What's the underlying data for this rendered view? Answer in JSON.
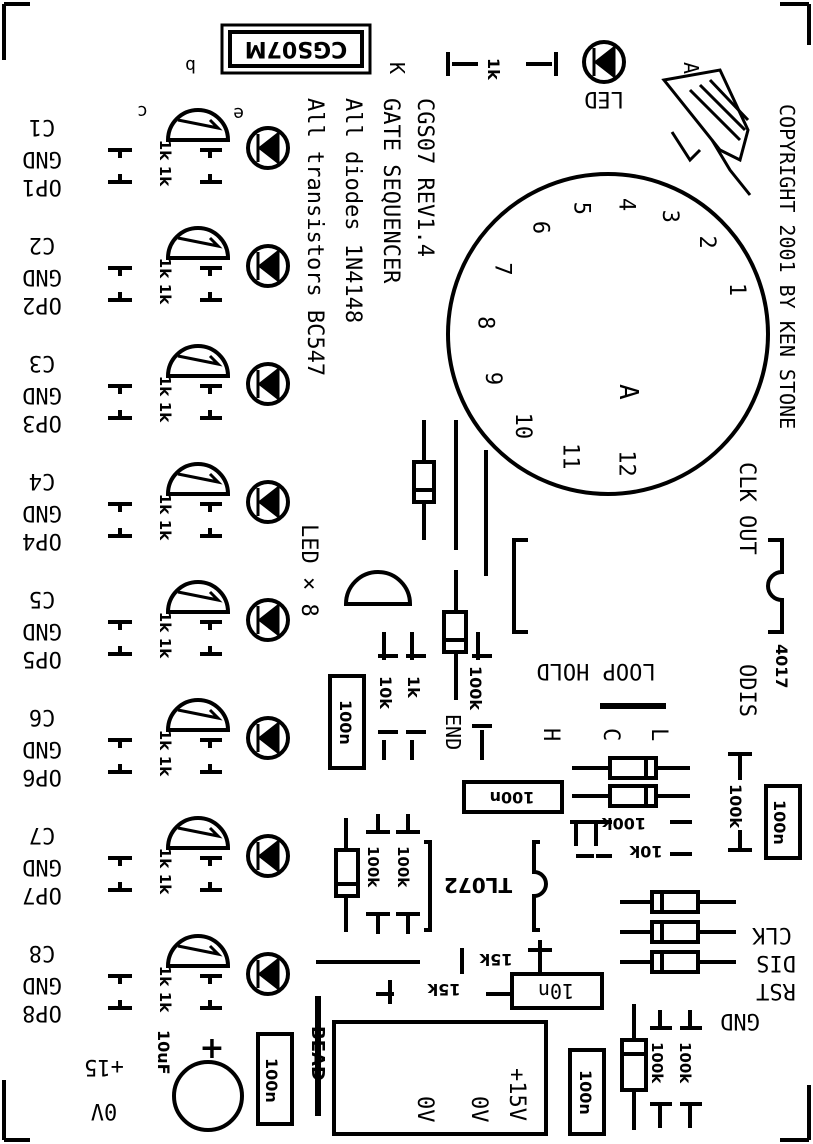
{
  "copyright": "COPYRIGHT 2001 BY KEN STONE",
  "notes": {
    "line1": "CGS07 REV1.4",
    "line2": "GATE SEQUENCER",
    "line3": "All diodes 1N4148",
    "line4": "All transistors BC547"
  },
  "chip_tag": "CGS07M",
  "led_label": "LED",
  "led_x8": "LED × 8",
  "k_label": "K",
  "a_label": "A",
  "transistor_pins": [
    "b",
    "c",
    "e"
  ],
  "rotary": {
    "positions": [
      "1",
      "2",
      "3",
      "4",
      "5",
      "6",
      "7",
      "8",
      "9",
      "10",
      "11",
      "12"
    ],
    "center": "A"
  },
  "channels": [
    {
      "c": "C1",
      "gnd": "GND",
      "op": "OP1"
    },
    {
      "c": "C2",
      "gnd": "GND",
      "op": "OP2"
    },
    {
      "c": "C3",
      "gnd": "GND",
      "op": "OP3"
    },
    {
      "c": "C4",
      "gnd": "GND",
      "op": "OP4"
    },
    {
      "c": "C5",
      "gnd": "GND",
      "op": "OP5"
    },
    {
      "c": "C6",
      "gnd": "GND",
      "op": "OP6"
    },
    {
      "c": "C7",
      "gnd": "GND",
      "op": "OP7"
    },
    {
      "c": "C8",
      "gnd": "GND",
      "op": "OP8"
    }
  ],
  "values": {
    "r1k": "1k",
    "r10k": "10k",
    "r100k": "100k",
    "r15k": "15k",
    "c100n": "100n",
    "c10n": "10n",
    "c10uf": "10uF",
    "ic4017": "4017",
    "ictl072": "TL072",
    "bead": "BEAD"
  },
  "labels": {
    "clk_out": "CLK OUT",
    "loop_hold": "LOOP HOLD",
    "odis": "ODIS",
    "end": "END",
    "h": "H",
    "c": "C",
    "l": "L",
    "clk": "CLK",
    "dis": "DIS",
    "rst": "RST",
    "gnd": "GND",
    "p15": "+15",
    "zero_v": "0V",
    "plus": "+"
  },
  "power_block": {
    "l1": "+15V",
    "l2": "0V",
    "l3": "0V"
  }
}
